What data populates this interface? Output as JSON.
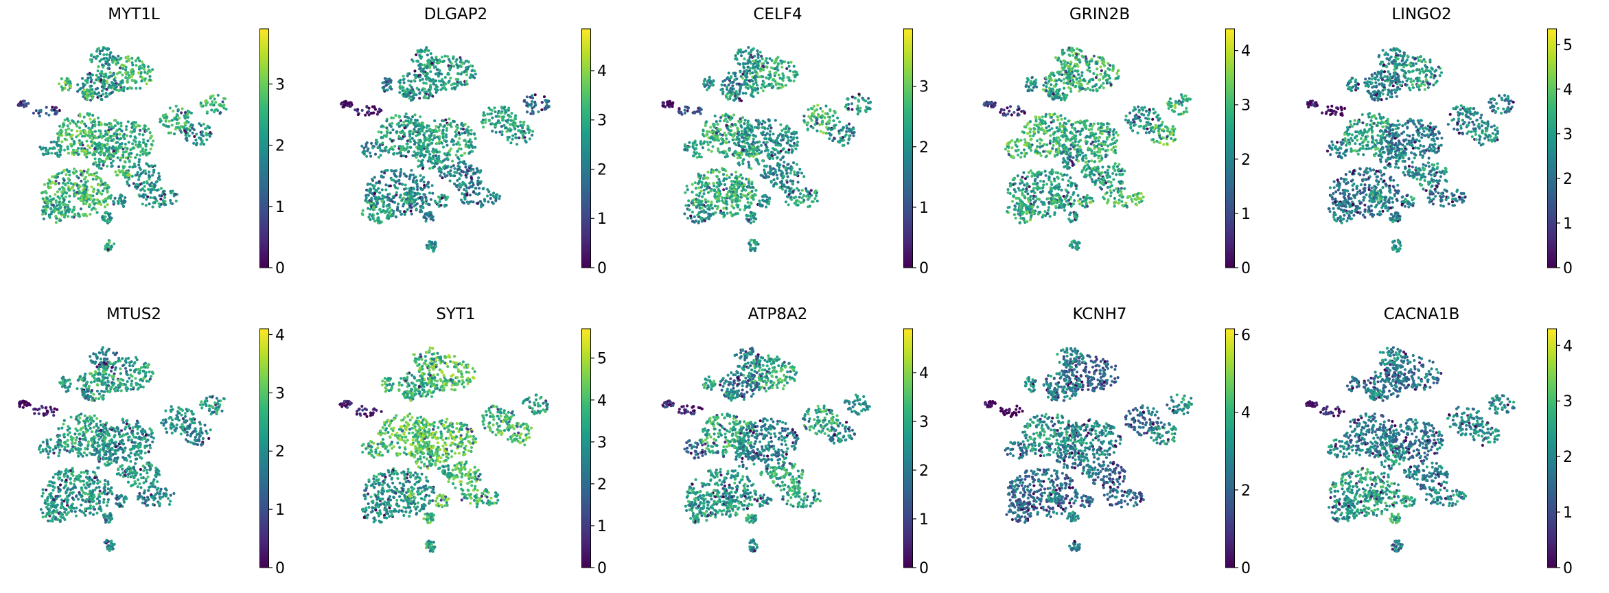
{
  "figure": {
    "type": "umap-feature-plots",
    "colormap": "viridis",
    "colormap_stops": [
      "#440154",
      "#482878",
      "#3e4a89",
      "#31688e",
      "#26828e",
      "#1f9e89",
      "#35b779",
      "#6ece58",
      "#b5de2b",
      "#fde725"
    ]
  },
  "chart_data": [
    {
      "type": "scatter",
      "title": "MYT1L",
      "colorbar": {
        "range": [
          0,
          3.9
        ],
        "ticks": [
          "0",
          "1",
          "2",
          "3"
        ]
      },
      "bias": 0.62
    },
    {
      "type": "scatter",
      "title": "DLGAP2",
      "colorbar": {
        "range": [
          0,
          4.85
        ],
        "ticks": [
          "0",
          "1",
          "2",
          "3",
          "4"
        ]
      },
      "bias": 0.5
    },
    {
      "type": "scatter",
      "title": "CELF4",
      "colorbar": {
        "range": [
          0,
          3.95
        ],
        "ticks": [
          "0",
          "1",
          "2",
          "3"
        ]
      },
      "bias": 0.55
    },
    {
      "type": "scatter",
      "title": "GRIN2B",
      "colorbar": {
        "range": [
          0,
          4.4
        ],
        "ticks": [
          "0",
          "1",
          "2",
          "3",
          "4"
        ]
      },
      "bias": 0.58
    },
    {
      "type": "scatter",
      "title": "LINGO2",
      "colorbar": {
        "range": [
          0,
          5.35
        ],
        "ticks": [
          "0",
          "1",
          "2",
          "3",
          "4",
          "5"
        ]
      },
      "bias": 0.5
    },
    {
      "type": "scatter",
      "title": "MTUS2",
      "colorbar": {
        "range": [
          0,
          4.1
        ],
        "ticks": [
          "0",
          "1",
          "2",
          "3",
          "4"
        ]
      },
      "bias": 0.5
    },
    {
      "type": "scatter",
      "title": "SYT1",
      "colorbar": {
        "range": [
          0,
          5.7
        ],
        "ticks": [
          "0",
          "1",
          "2",
          "3",
          "4",
          "5"
        ]
      },
      "bias": 0.62
    },
    {
      "type": "scatter",
      "title": "ATP8A2",
      "colorbar": {
        "range": [
          0,
          4.9
        ],
        "ticks": [
          "0",
          "1",
          "2",
          "3",
          "4"
        ]
      },
      "bias": 0.5
    },
    {
      "type": "scatter",
      "title": "KCNH7",
      "colorbar": {
        "range": [
          0,
          6.15
        ],
        "ticks": [
          "0",
          "2",
          "4",
          "6"
        ]
      },
      "bias": 0.42
    },
    {
      "type": "scatter",
      "title": "CACNA1B",
      "colorbar": {
        "range": [
          0,
          4.3
        ],
        "ticks": [
          "0",
          "1",
          "2",
          "3",
          "4"
        ]
      },
      "bias": 0.5
    }
  ]
}
